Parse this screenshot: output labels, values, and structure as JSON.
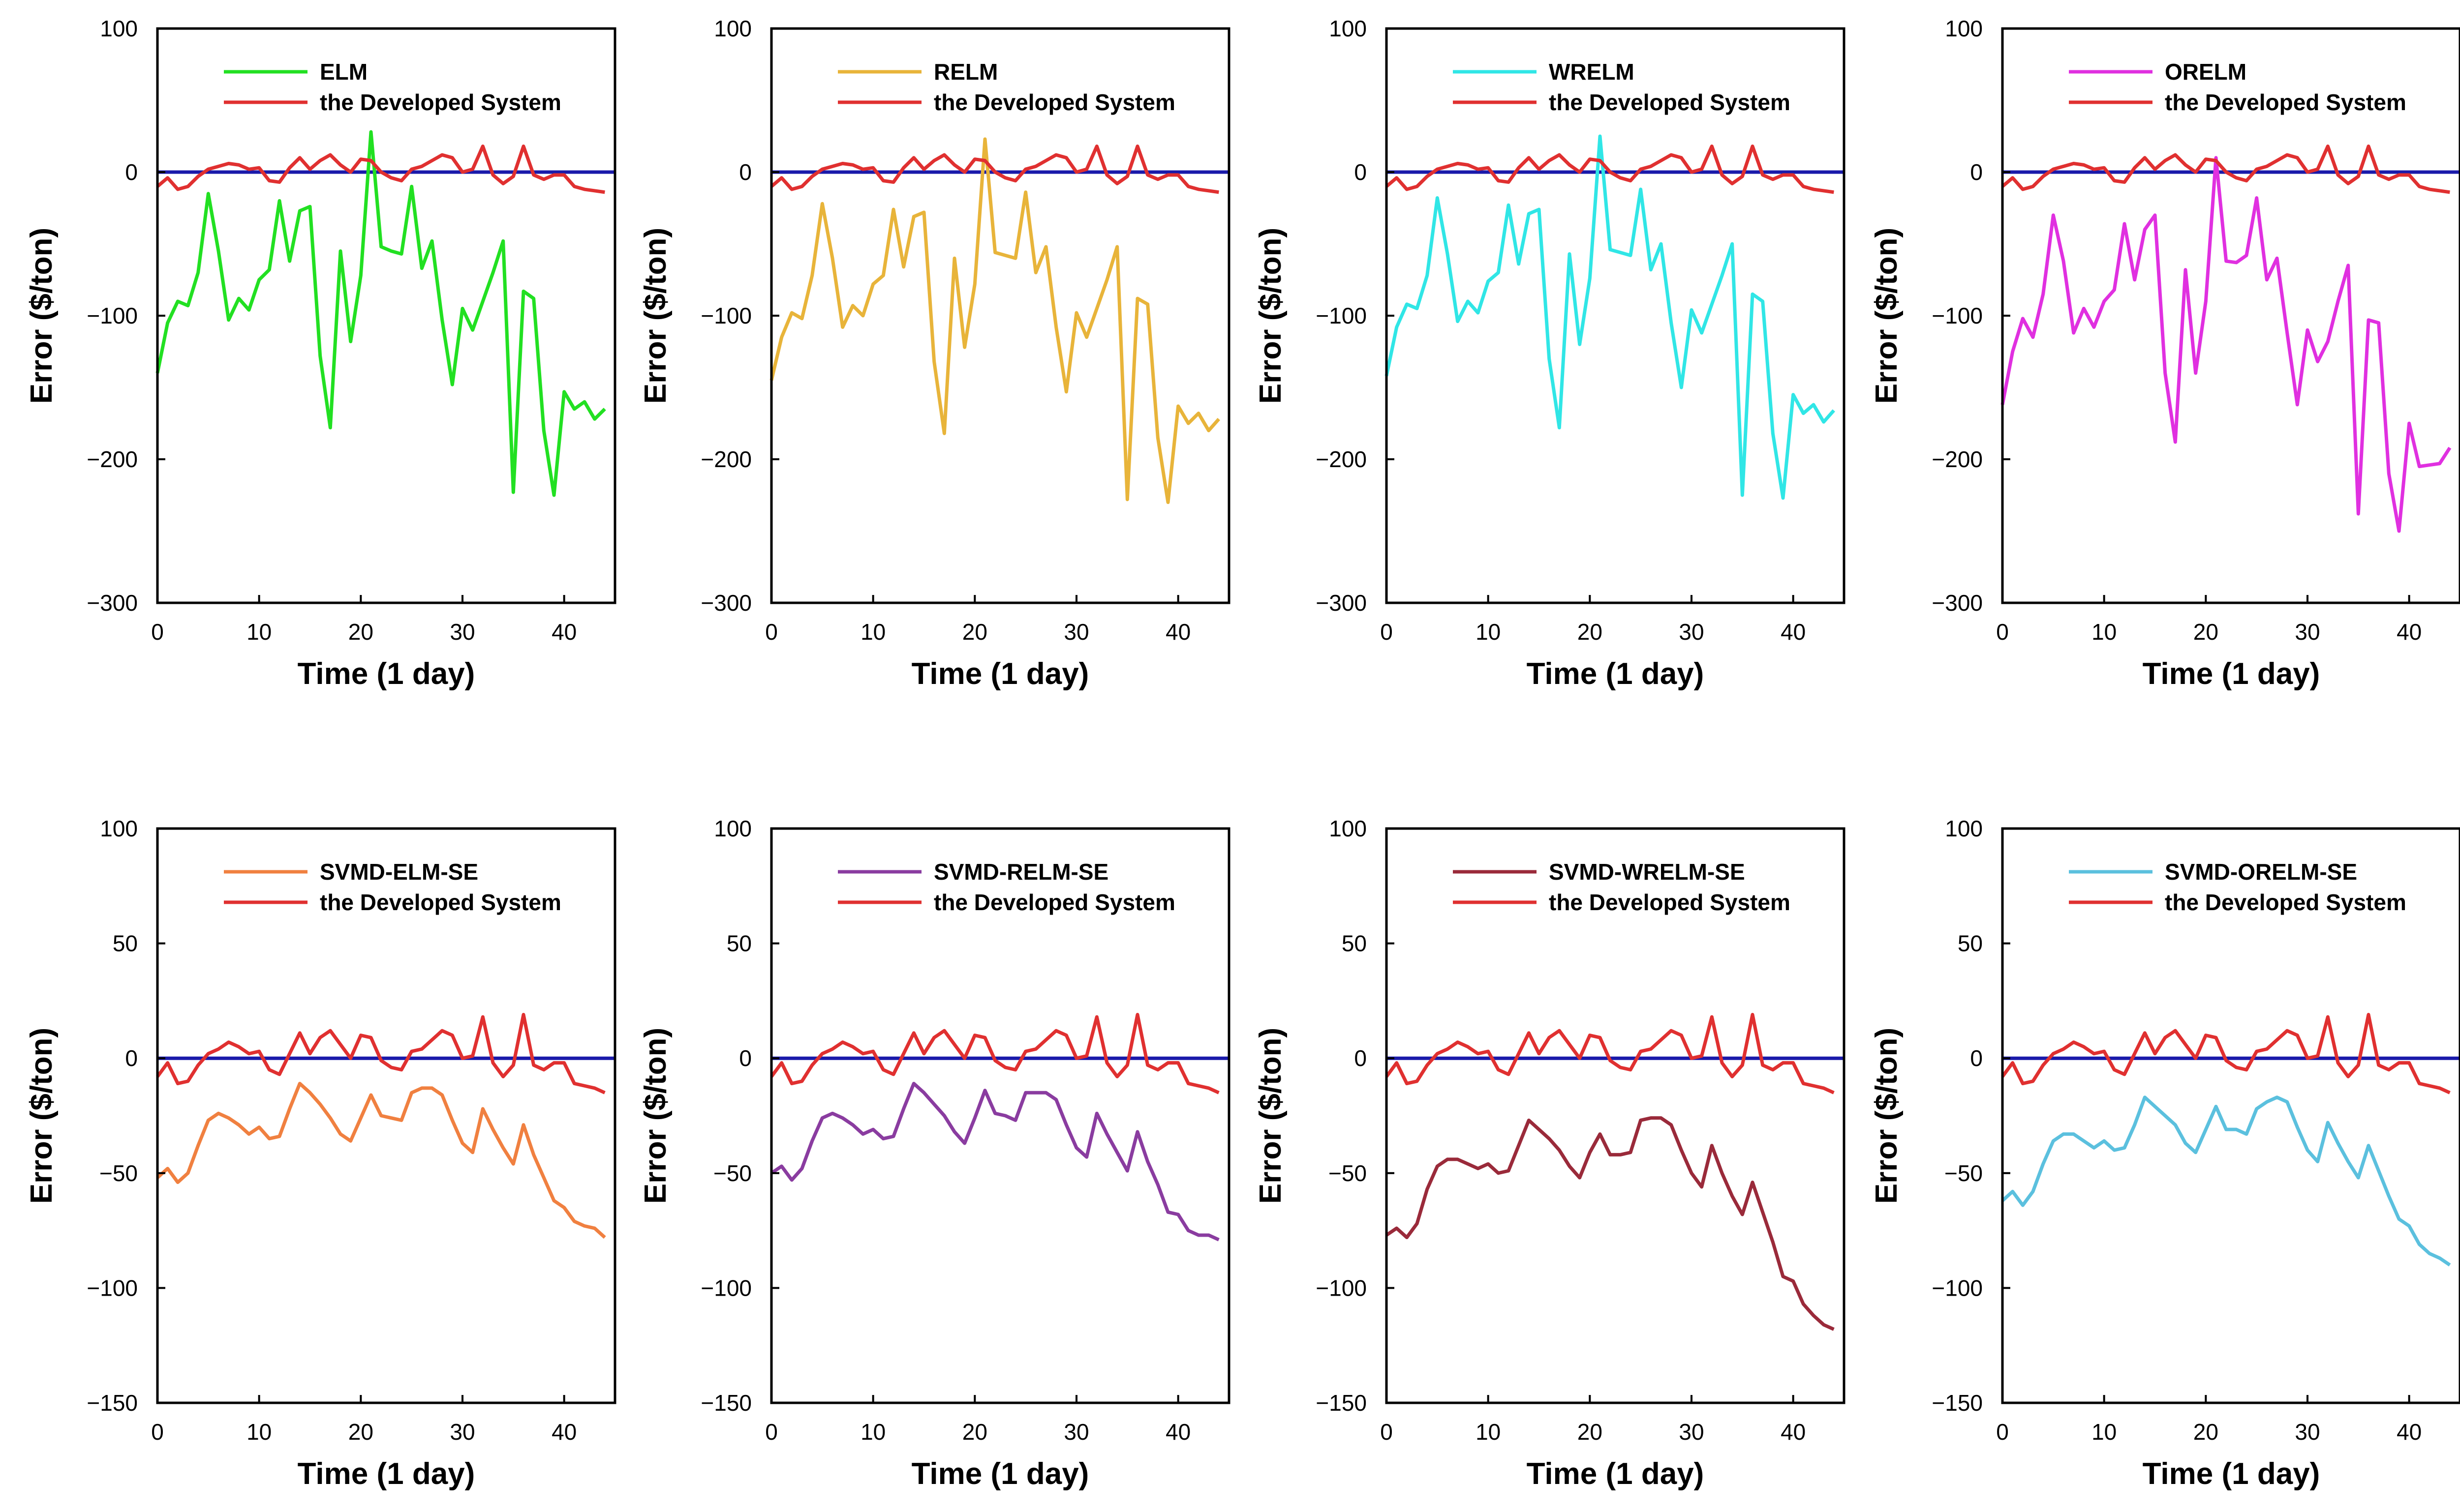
{
  "chart_data": [
    {
      "type": "line",
      "ylim": [
        -300,
        100
      ],
      "yticks": [
        -300,
        -200,
        -100,
        0,
        100
      ],
      "xlim": [
        0,
        45
      ],
      "xticks": [
        0,
        10,
        20,
        30,
        40
      ],
      "xlabel": "Time (1 day)",
      "ylabel": "Error ($/ton)",
      "series": [
        {
          "name": "ELM",
          "color": "#22e022",
          "values": [
            -140,
            -105,
            -90,
            -93,
            -70,
            -15,
            -55,
            -103,
            -88,
            -96,
            -75,
            -68,
            -20,
            -62,
            -27,
            -24,
            -128,
            -178,
            -55,
            -118,
            -72,
            28,
            -52,
            -55,
            -57,
            -10,
            -67,
            -48,
            -103,
            -148,
            -95,
            -110,
            -90,
            -70,
            -48,
            -223,
            -83,
            -88,
            -180,
            -225,
            -153,
            -165,
            -160,
            -172,
            -165
          ]
        },
        {
          "name": "the Developed System",
          "color": "#e03030",
          "values": [
            -10,
            -4,
            -12,
            -10,
            -3,
            2,
            4,
            6,
            5,
            2,
            3,
            -6,
            -7,
            3,
            10,
            2,
            8,
            12,
            5,
            0,
            9,
            8,
            0,
            -4,
            -6,
            2,
            4,
            8,
            12,
            10,
            0,
            2,
            18,
            -2,
            -8,
            -3,
            18,
            -2,
            -5,
            -2,
            -2,
            -10,
            -12,
            -13,
            -14
          ]
        }
      ]
    },
    {
      "type": "line",
      "ylim": [
        -300,
        100
      ],
      "yticks": [
        -300,
        -200,
        -100,
        0,
        100
      ],
      "xlim": [
        0,
        45
      ],
      "xticks": [
        0,
        10,
        20,
        30,
        40
      ],
      "xlabel": "Time (1 day)",
      "ylabel": "Error ($/ton)",
      "series": [
        {
          "name": "RELM",
          "color": "#e8b43a",
          "values": [
            -145,
            -115,
            -98,
            -102,
            -72,
            -22,
            -60,
            -108,
            -93,
            -100,
            -78,
            -72,
            -26,
            -66,
            -31,
            -28,
            -132,
            -182,
            -60,
            -122,
            -78,
            23,
            -56,
            -58,
            -60,
            -14,
            -70,
            -52,
            -108,
            -153,
            -98,
            -115,
            -95,
            -75,
            -52,
            -228,
            -88,
            -92,
            -185,
            -230,
            -163,
            -175,
            -168,
            -180,
            -172
          ]
        },
        {
          "name": "the Developed System",
          "color": "#e03030",
          "values": [
            -10,
            -4,
            -12,
            -10,
            -3,
            2,
            4,
            6,
            5,
            2,
            3,
            -6,
            -7,
            3,
            10,
            2,
            8,
            12,
            5,
            0,
            9,
            8,
            0,
            -4,
            -6,
            2,
            4,
            8,
            12,
            10,
            0,
            2,
            18,
            -2,
            -8,
            -3,
            18,
            -2,
            -5,
            -2,
            -2,
            -10,
            -12,
            -13,
            -14
          ]
        }
      ]
    },
    {
      "type": "line",
      "ylim": [
        -300,
        100
      ],
      "yticks": [
        -300,
        -200,
        -100,
        0,
        100
      ],
      "xlim": [
        0,
        45
      ],
      "xticks": [
        0,
        10,
        20,
        30,
        40
      ],
      "xlabel": "Time (1 day)",
      "ylabel": "Error ($/ton)",
      "series": [
        {
          "name": "WRELM",
          "color": "#30e6e6",
          "values": [
            -142,
            -108,
            -92,
            -95,
            -72,
            -18,
            -57,
            -104,
            -90,
            -98,
            -76,
            -70,
            -23,
            -64,
            -29,
            -26,
            -130,
            -178,
            -57,
            -120,
            -74,
            25,
            -54,
            -56,
            -58,
            -12,
            -68,
            -50,
            -105,
            -150,
            -96,
            -112,
            -92,
            -72,
            -50,
            -225,
            -85,
            -90,
            -182,
            -227,
            -155,
            -168,
            -162,
            -174,
            -166
          ]
        },
        {
          "name": "the Developed System",
          "color": "#e03030",
          "values": [
            -10,
            -4,
            -12,
            -10,
            -3,
            2,
            4,
            6,
            5,
            2,
            3,
            -6,
            -7,
            3,
            10,
            2,
            8,
            12,
            5,
            0,
            9,
            8,
            0,
            -4,
            -6,
            2,
            4,
            8,
            12,
            10,
            0,
            2,
            18,
            -2,
            -8,
            -3,
            18,
            -2,
            -5,
            -2,
            -2,
            -10,
            -12,
            -13,
            -14
          ]
        }
      ]
    },
    {
      "type": "line",
      "ylim": [
        -300,
        100
      ],
      "yticks": [
        -300,
        -200,
        -100,
        0,
        100
      ],
      "xlim": [
        0,
        45
      ],
      "xticks": [
        0,
        10,
        20,
        30,
        40
      ],
      "xlabel": "Time (1 day)",
      "ylabel": "Error ($/ton)",
      "series": [
        {
          "name": "ORELM",
          "color": "#e030e0",
          "values": [
            -162,
            -125,
            -102,
            -115,
            -85,
            -30,
            -62,
            -112,
            -95,
            -108,
            -90,
            -82,
            -36,
            -75,
            -40,
            -30,
            -140,
            -188,
            -68,
            -140,
            -90,
            10,
            -62,
            -63,
            -58,
            -18,
            -75,
            -60,
            -112,
            -162,
            -110,
            -132,
            -118,
            -90,
            -65,
            -238,
            -103,
            -105,
            -210,
            -250,
            -175,
            -205,
            -204,
            -203,
            -192
          ]
        },
        {
          "name": "the Developed System",
          "color": "#e03030",
          "values": [
            -10,
            -4,
            -12,
            -10,
            -3,
            2,
            4,
            6,
            5,
            2,
            3,
            -6,
            -7,
            3,
            10,
            2,
            8,
            12,
            5,
            0,
            9,
            8,
            0,
            -4,
            -6,
            2,
            4,
            8,
            12,
            10,
            0,
            2,
            18,
            -2,
            -8,
            -3,
            18,
            -2,
            -5,
            -2,
            -2,
            -10,
            -12,
            -13,
            -14
          ]
        }
      ]
    },
    {
      "type": "line",
      "ylim": [
        -150,
        100
      ],
      "yticks": [
        -150,
        -100,
        -50,
        0,
        50,
        100
      ],
      "xlim": [
        0,
        45
      ],
      "xticks": [
        0,
        10,
        20,
        30,
        40
      ],
      "xlabel": "Time (1 day)",
      "ylabel": "Error ($/ton)",
      "series": [
        {
          "name": "SVMD-ELM-SE",
          "color": "#f08040",
          "values": [
            -52,
            -48,
            -54,
            -50,
            -38,
            -27,
            -24,
            -26,
            -29,
            -33,
            -30,
            -35,
            -34,
            -22,
            -11,
            -15,
            -20,
            -26,
            -33,
            -36,
            -26,
            -16,
            -25,
            -26,
            -27,
            -15,
            -13,
            -13,
            -16,
            -27,
            -37,
            -41,
            -22,
            -31,
            -39,
            -46,
            -29,
            -42,
            -52,
            -62,
            -65,
            -71,
            -73,
            -74,
            -78
          ]
        },
        {
          "name": "the Developed System",
          "color": "#e03030",
          "values": [
            -8,
            -2,
            -11,
            -10,
            -3,
            2,
            4,
            7,
            5,
            2,
            3,
            -5,
            -7,
            2,
            11,
            2,
            9,
            12,
            6,
            0,
            10,
            9,
            -1,
            -4,
            -5,
            3,
            4,
            8,
            12,
            10,
            0,
            1,
            18,
            -2,
            -8,
            -3,
            19,
            -3,
            -5,
            -2,
            -2,
            -11,
            -12,
            -13,
            -15
          ]
        }
      ]
    },
    {
      "type": "line",
      "ylim": [
        -150,
        100
      ],
      "yticks": [
        -150,
        -100,
        -50,
        0,
        50,
        100
      ],
      "xlim": [
        0,
        45
      ],
      "xticks": [
        0,
        10,
        20,
        30,
        40
      ],
      "xlabel": "Time (1 day)",
      "ylabel": "Error ($/ton)",
      "series": [
        {
          "name": "SVMD-RELM-SE",
          "color": "#8a3ca0",
          "values": [
            -50,
            -47,
            -53,
            -48,
            -36,
            -26,
            -24,
            -26,
            -29,
            -33,
            -31,
            -35,
            -34,
            -22,
            -11,
            -15,
            -20,
            -25,
            -32,
            -37,
            -26,
            -14,
            -24,
            -25,
            -27,
            -15,
            -15,
            -15,
            -18,
            -29,
            -39,
            -43,
            -24,
            -33,
            -41,
            -49,
            -32,
            -45,
            -55,
            -67,
            -68,
            -75,
            -77,
            -77,
            -79
          ]
        },
        {
          "name": "the Developed System",
          "color": "#e03030",
          "values": [
            -8,
            -2,
            -11,
            -10,
            -3,
            2,
            4,
            7,
            5,
            2,
            3,
            -5,
            -7,
            2,
            11,
            2,
            9,
            12,
            6,
            0,
            10,
            9,
            -1,
            -4,
            -5,
            3,
            4,
            8,
            12,
            10,
            0,
            1,
            18,
            -2,
            -8,
            -3,
            19,
            -3,
            -5,
            -2,
            -2,
            -11,
            -12,
            -13,
            -15
          ]
        }
      ]
    },
    {
      "type": "line",
      "ylim": [
        -150,
        100
      ],
      "yticks": [
        -150,
        -100,
        -50,
        0,
        50,
        100
      ],
      "xlim": [
        0,
        45
      ],
      "xticks": [
        0,
        10,
        20,
        30,
        40
      ],
      "xlabel": "Time (1 day)",
      "ylabel": "Error ($/ton)",
      "series": [
        {
          "name": "SVMD-WRELM-SE",
          "color": "#9a2a3a",
          "values": [
            -77,
            -74,
            -78,
            -72,
            -57,
            -47,
            -44,
            -44,
            -46,
            -48,
            -46,
            -50,
            -49,
            -38,
            -27,
            -31,
            -35,
            -40,
            -47,
            -52,
            -41,
            -33,
            -42,
            -42,
            -41,
            -27,
            -26,
            -26,
            -29,
            -40,
            -50,
            -56,
            -38,
            -50,
            -60,
            -68,
            -54,
            -67,
            -80,
            -95,
            -97,
            -107,
            -112,
            -116,
            -118
          ]
        },
        {
          "name": "the Developed System",
          "color": "#e03030",
          "values": [
            -8,
            -2,
            -11,
            -10,
            -3,
            2,
            4,
            7,
            5,
            2,
            3,
            -5,
            -7,
            2,
            11,
            2,
            9,
            12,
            6,
            0,
            10,
            9,
            -1,
            -4,
            -5,
            3,
            4,
            8,
            12,
            10,
            0,
            1,
            18,
            -2,
            -8,
            -3,
            19,
            -3,
            -5,
            -2,
            -2,
            -11,
            -12,
            -13,
            -15
          ]
        }
      ]
    },
    {
      "type": "line",
      "ylim": [
        -150,
        100
      ],
      "yticks": [
        -150,
        -100,
        -50,
        0,
        50,
        100
      ],
      "xlim": [
        0,
        45
      ],
      "xticks": [
        0,
        10,
        20,
        30,
        40
      ],
      "xlabel": "Time (1 day)",
      "ylabel": "Error ($/ton)",
      "series": [
        {
          "name": "SVMD-ORELM-SE",
          "color": "#5bc0de",
          "values": [
            -62,
            -58,
            -64,
            -58,
            -46,
            -36,
            -33,
            -33,
            -36,
            -39,
            -36,
            -40,
            -39,
            -29,
            -17,
            -21,
            -25,
            -29,
            -37,
            -41,
            -31,
            -21,
            -31,
            -31,
            -33,
            -22,
            -19,
            -17,
            -19,
            -30,
            -40,
            -45,
            -28,
            -37,
            -45,
            -52,
            -38,
            -49,
            -60,
            -70,
            -73,
            -81,
            -85,
            -87,
            -90
          ]
        },
        {
          "name": "the Developed System",
          "color": "#e03030",
          "values": [
            -8,
            -2,
            -11,
            -10,
            -3,
            2,
            4,
            7,
            5,
            2,
            3,
            -5,
            -7,
            2,
            11,
            2,
            9,
            12,
            6,
            0,
            10,
            9,
            -1,
            -4,
            -5,
            3,
            4,
            8,
            12,
            10,
            0,
            1,
            18,
            -2,
            -8,
            -3,
            19,
            -3,
            -5,
            -2,
            -2,
            -11,
            -12,
            -13,
            -15
          ]
        }
      ]
    }
  ],
  "colors": {
    "zero_line": "#1a1aaa",
    "axis": "#000000"
  }
}
